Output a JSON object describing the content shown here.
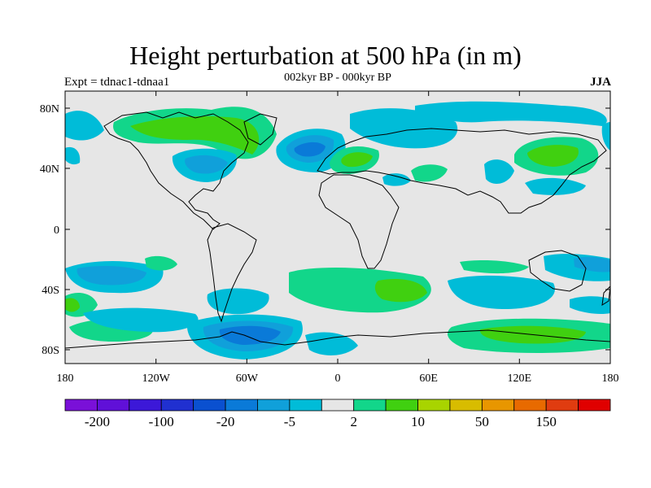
{
  "title": "Height perturbation at 500 hPa (in m)",
  "subtitle": "002kyr BP - 000kyr BP",
  "left_label": "Expt = tdnac1-tdnaa1",
  "right_label": "JJA",
  "lat_ticks": [
    "80N",
    "40N",
    "0",
    "40S",
    "80S"
  ],
  "lon_ticks": [
    "180",
    "120W",
    "60W",
    "0",
    "60E",
    "120E",
    "180"
  ],
  "colorbar": {
    "colors": [
      "#7a10d8",
      "#6010d8",
      "#3c18d8",
      "#2030d0",
      "#0a50d0",
      "#0a7ad8",
      "#10a0da",
      "#00bcd8",
      "#e6e6e6",
      "#12d68a",
      "#40d010",
      "#a8d400",
      "#d8bc00",
      "#e89600",
      "#e86a00",
      "#e03c10",
      "#e00000"
    ],
    "labels": [
      "-200",
      "-100",
      "-20",
      "-5",
      "2",
      "10",
      "50",
      "150"
    ]
  },
  "colors": {
    "background": "#e6e6e6",
    "neg_weak": "#00bcd8",
    "neg_mid": "#10a0da",
    "neg_strong": "#0a7ad8",
    "pos_weak": "#12d68a",
    "pos_mid": "#40d010"
  }
}
